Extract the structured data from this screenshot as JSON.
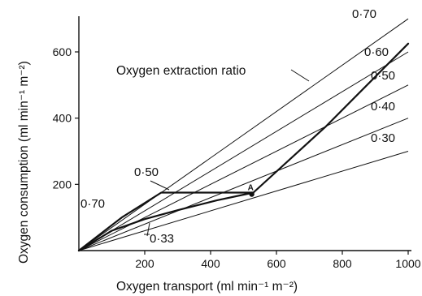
{
  "chart_data": {
    "type": "line",
    "xlabel": "Oxygen transport (ml min⁻¹ m⁻²)",
    "ylabel": "Oxygen consumption (ml min⁻¹ m⁻²)",
    "xlim": [
      0,
      1000
    ],
    "ylim": [
      0,
      700
    ],
    "x_ticks": [
      200,
      400,
      600,
      800,
      1000
    ],
    "y_ticks": [
      200,
      400,
      600
    ],
    "grid": false,
    "ratio_lines_title": "Oxygen extraction ratio",
    "ratio_lines": [
      {
        "name": "0·70",
        "ratio": 0.7
      },
      {
        "name": "0·60",
        "ratio": 0.6
      },
      {
        "name": "0·50",
        "ratio": 0.5
      },
      {
        "name": "0·40",
        "ratio": 0.4
      },
      {
        "name": "0·30",
        "ratio": 0.3
      }
    ],
    "series": [
      {
        "points": [
          {
            "x": 0,
            "y": 0
          },
          {
            "x": 130,
            "y": 100
          },
          {
            "x": 250,
            "y": 175
          },
          {
            "x": 530,
            "y": 175
          },
          {
            "x": 750,
            "y": 375
          },
          {
            "x": 1000,
            "y": 625
          }
        ]
      },
      {
        "points": [
          {
            "x": 0,
            "y": 0
          },
          {
            "x": 100,
            "y": 60
          },
          {
            "x": 200,
            "y": 95
          },
          {
            "x": 300,
            "y": 122
          },
          {
            "x": 420,
            "y": 152
          },
          {
            "x": 530,
            "y": 175
          }
        ]
      }
    ],
    "points": [
      {
        "label": "A",
        "x": 530,
        "y": 175
      }
    ],
    "annotations": [
      {
        "text": "0·50",
        "x": 175,
        "y": 168
      },
      {
        "text": "0·70",
        "x": 20,
        "y": 150
      },
      {
        "text": "0·33",
        "x": 180,
        "y": 20
      }
    ]
  }
}
